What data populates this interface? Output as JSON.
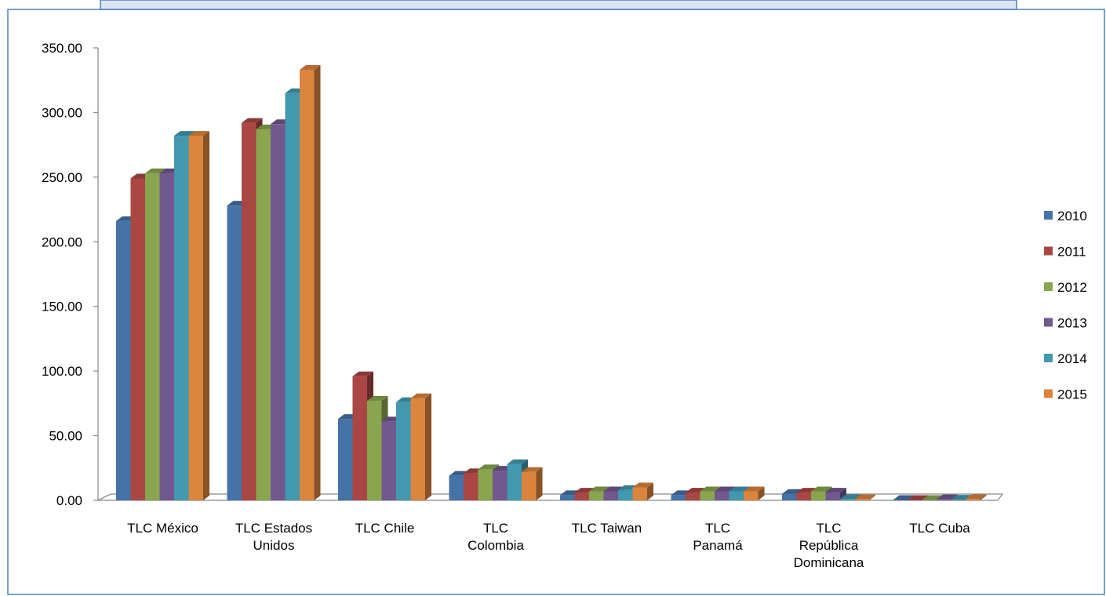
{
  "chart_data": {
    "type": "bar",
    "style": "3d-clustered-column",
    "ylim": [
      0,
      350
    ],
    "y_ticks": [
      "0.00",
      "50.00",
      "100.00",
      "150.00",
      "200.00",
      "250.00",
      "300.00",
      "350.00"
    ],
    "categories": [
      [
        "TLC México"
      ],
      [
        "TLC Estados",
        "Unidos"
      ],
      [
        "TLC Chile"
      ],
      [
        "TLC",
        "Colombia"
      ],
      [
        "TLC Taiwan"
      ],
      [
        "TLC",
        "Panamá"
      ],
      [
        "TLC",
        "República",
        "Dominicana"
      ],
      [
        "TLC Cuba"
      ]
    ],
    "series": [
      {
        "name": "2010",
        "color": "#4572a7",
        "values": [
          216,
          228,
          63,
          19,
          4,
          4,
          5,
          0.3
        ]
      },
      {
        "name": "2011",
        "color": "#aa4643",
        "values": [
          249,
          292,
          96,
          21,
          6,
          6,
          6,
          0.3
        ]
      },
      {
        "name": "2012",
        "color": "#89a54e",
        "values": [
          253,
          287,
          77,
          24,
          7,
          7,
          7,
          0.3
        ]
      },
      {
        "name": "2013",
        "color": "#71588f",
        "values": [
          253,
          291,
          61,
          23,
          7,
          7,
          6,
          0.8
        ]
      },
      {
        "name": "2014",
        "color": "#4198af",
        "values": [
          282,
          315,
          76,
          28,
          8,
          7,
          1,
          0.5
        ]
      },
      {
        "name": "2015",
        "color": "#db843d",
        "values": [
          282,
          333,
          79,
          22,
          10,
          7,
          0.8,
          1
        ]
      }
    ],
    "legend_position": "right",
    "grid": false
  }
}
